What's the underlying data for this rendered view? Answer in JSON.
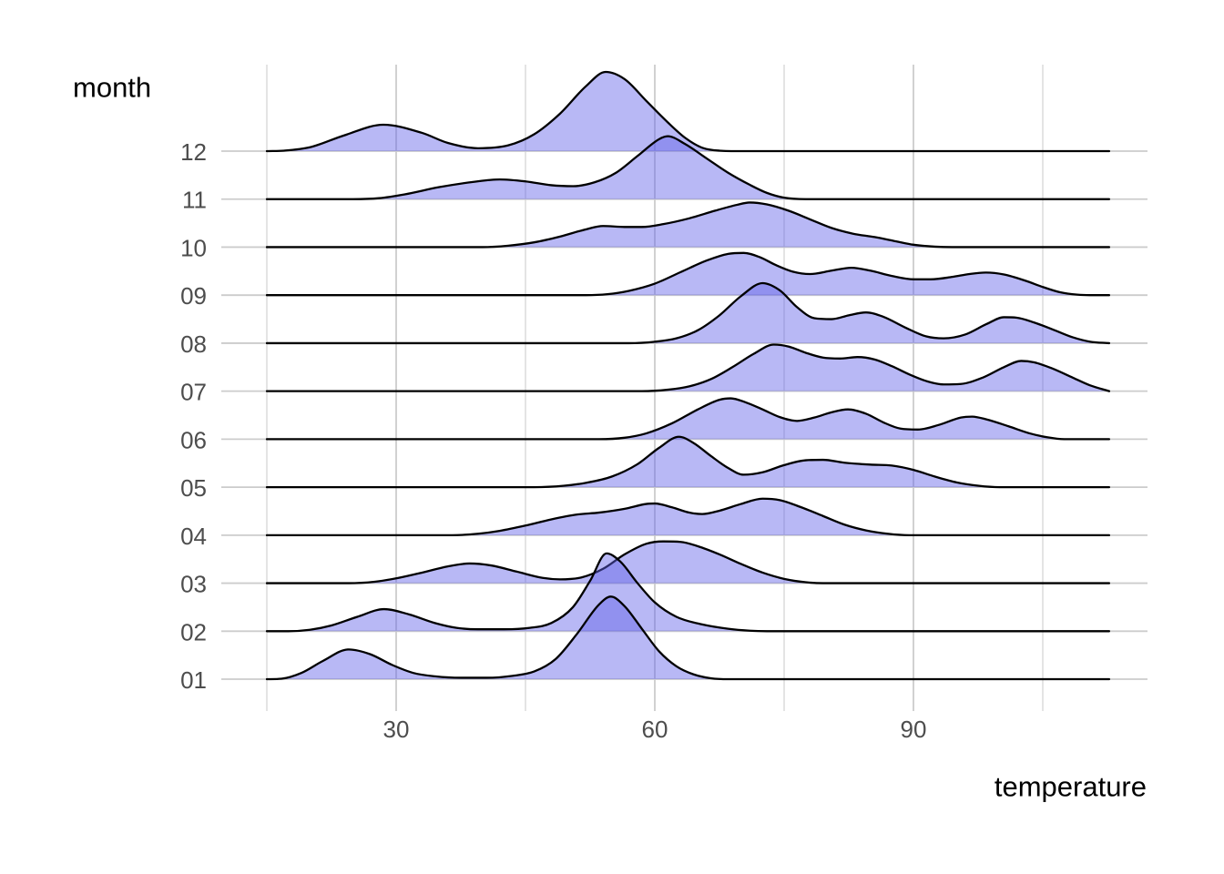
{
  "chart_data": {
    "type": "ridgeline",
    "title": "",
    "xlabel": "temperature",
    "ylabel": "month",
    "x_ticks": [
      "30",
      "60",
      "90"
    ],
    "x_tick_values": [
      30,
      60,
      90
    ],
    "x_minor_tick_values": [
      15,
      45,
      75,
      105
    ],
    "x_domain": [
      15,
      112.7
    ],
    "y_categories_top_to_bottom": [
      "12",
      "11",
      "10",
      "09",
      "08",
      "07",
      "06",
      "05",
      "04",
      "03",
      "02",
      "01"
    ],
    "grid": true,
    "legend": "none",
    "points_note": "points are [temperature, density_height] with height in units of one row spacing",
    "colors": {
      "ridge_fill": "rgba(97,97,233,0.45)",
      "ridge_stroke": "#000000",
      "grid_major": "#cccccc",
      "grid_minor": "#d8d8d8",
      "tick_label": "#4d4d4d",
      "axis_title": "#000000",
      "background": "#ffffff"
    },
    "series": [
      {
        "month": "12",
        "points": [
          [
            15,
            0
          ],
          [
            17,
            0.01
          ],
          [
            20,
            0.08
          ],
          [
            24,
            0.33
          ],
          [
            28.5,
            0.55
          ],
          [
            33,
            0.38
          ],
          [
            36,
            0.17
          ],
          [
            39.5,
            0.06
          ],
          [
            43,
            0.12
          ],
          [
            46,
            0.35
          ],
          [
            49,
            0.78
          ],
          [
            52,
            1.35
          ],
          [
            54.3,
            1.65
          ],
          [
            56.5,
            1.5
          ],
          [
            59,
            1.05
          ],
          [
            61.5,
            0.6
          ],
          [
            63.5,
            0.28
          ],
          [
            65.5,
            0.07
          ],
          [
            67.5,
            0.01
          ],
          [
            70,
            0
          ],
          [
            112.7,
            0
          ]
        ]
      },
      {
        "month": "11",
        "points": [
          [
            15,
            0
          ],
          [
            25,
            0
          ],
          [
            28,
            0.02
          ],
          [
            31,
            0.1
          ],
          [
            35,
            0.25
          ],
          [
            39,
            0.36
          ],
          [
            42,
            0.41
          ],
          [
            45,
            0.37
          ],
          [
            48,
            0.29
          ],
          [
            50.5,
            0.27
          ],
          [
            53,
            0.35
          ],
          [
            55.5,
            0.55
          ],
          [
            58,
            0.9
          ],
          [
            60.5,
            1.25
          ],
          [
            61.5,
            1.31
          ],
          [
            63.5,
            1.15
          ],
          [
            66,
            0.85
          ],
          [
            68.5,
            0.55
          ],
          [
            71,
            0.3
          ],
          [
            73,
            0.13
          ],
          [
            75,
            0.03
          ],
          [
            77.5,
            0
          ],
          [
            112.7,
            0
          ]
        ]
      },
      {
        "month": "10",
        "points": [
          [
            15,
            0
          ],
          [
            40,
            0
          ],
          [
            43,
            0.03
          ],
          [
            46,
            0.1
          ],
          [
            49,
            0.22
          ],
          [
            52,
            0.37
          ],
          [
            54,
            0.44
          ],
          [
            56.5,
            0.42
          ],
          [
            58.5,
            0.42
          ],
          [
            61,
            0.48
          ],
          [
            64,
            0.6
          ],
          [
            67,
            0.76
          ],
          [
            69.5,
            0.88
          ],
          [
            71,
            0.93
          ],
          [
            73,
            0.89
          ],
          [
            75.5,
            0.76
          ],
          [
            78,
            0.58
          ],
          [
            80.5,
            0.4
          ],
          [
            83,
            0.28
          ],
          [
            85.5,
            0.21
          ],
          [
            88,
            0.12
          ],
          [
            90,
            0.05
          ],
          [
            92.5,
            0.01
          ],
          [
            94.5,
            0
          ],
          [
            112.7,
            0
          ]
        ]
      },
      {
        "month": "09",
        "points": [
          [
            15,
            0
          ],
          [
            52,
            0
          ],
          [
            54.5,
            0.02
          ],
          [
            57,
            0.09
          ],
          [
            60,
            0.24
          ],
          [
            63,
            0.48
          ],
          [
            66,
            0.72
          ],
          [
            68.5,
            0.86
          ],
          [
            70.3,
            0.88
          ],
          [
            72.2,
            0.79
          ],
          [
            74,
            0.63
          ],
          [
            76,
            0.49
          ],
          [
            78,
            0.44
          ],
          [
            80.5,
            0.51
          ],
          [
            82.8,
            0.57
          ],
          [
            85,
            0.51
          ],
          [
            87.5,
            0.4
          ],
          [
            90,
            0.33
          ],
          [
            92,
            0.33
          ],
          [
            94.5,
            0.38
          ],
          [
            96.5,
            0.44
          ],
          [
            98.4,
            0.47
          ],
          [
            100.5,
            0.43
          ],
          [
            103,
            0.3
          ],
          [
            105,
            0.17
          ],
          [
            107,
            0.06
          ],
          [
            109,
            0.01
          ],
          [
            110.5,
            0
          ],
          [
            112.7,
            0
          ]
        ]
      },
      {
        "month": "08",
        "points": [
          [
            15,
            0
          ],
          [
            57,
            0
          ],
          [
            60,
            0.03
          ],
          [
            62.5,
            0.1
          ],
          [
            65,
            0.27
          ],
          [
            67.5,
            0.58
          ],
          [
            70,
            0.98
          ],
          [
            72.5,
            1.25
          ],
          [
            74.5,
            1.1
          ],
          [
            76.5,
            0.75
          ],
          [
            78.5,
            0.52
          ],
          [
            80.5,
            0.5
          ],
          [
            82.5,
            0.58
          ],
          [
            84.5,
            0.64
          ],
          [
            86.5,
            0.55
          ],
          [
            89,
            0.33
          ],
          [
            91.5,
            0.14
          ],
          [
            93.5,
            0.1
          ],
          [
            96,
            0.18
          ],
          [
            98.5,
            0.4
          ],
          [
            100.5,
            0.54
          ],
          [
            102,
            0.53
          ],
          [
            104,
            0.43
          ],
          [
            106.5,
            0.26
          ],
          [
            108.5,
            0.12
          ],
          [
            110.5,
            0.03
          ],
          [
            112.7,
            0
          ]
        ]
      },
      {
        "month": "07",
        "points": [
          [
            15,
            0
          ],
          [
            58.5,
            0
          ],
          [
            61.5,
            0.03
          ],
          [
            64,
            0.1
          ],
          [
            66.5,
            0.25
          ],
          [
            69,
            0.5
          ],
          [
            71.5,
            0.78
          ],
          [
            73.8,
            0.97
          ],
          [
            75.5,
            0.93
          ],
          [
            77.5,
            0.8
          ],
          [
            79.5,
            0.7
          ],
          [
            81.5,
            0.68
          ],
          [
            83.5,
            0.71
          ],
          [
            85.5,
            0.66
          ],
          [
            87.5,
            0.52
          ],
          [
            89.5,
            0.35
          ],
          [
            91.5,
            0.21
          ],
          [
            93.5,
            0.14
          ],
          [
            95.5,
            0.15
          ],
          [
            98,
            0.28
          ],
          [
            100.5,
            0.5
          ],
          [
            102.5,
            0.63
          ],
          [
            104,
            0.6
          ],
          [
            106,
            0.48
          ],
          [
            108.5,
            0.28
          ],
          [
            110.5,
            0.12
          ],
          [
            112.7,
            0
          ]
        ]
      },
      {
        "month": "06",
        "points": [
          [
            15,
            0
          ],
          [
            53.5,
            0
          ],
          [
            56.5,
            0.03
          ],
          [
            59,
            0.12
          ],
          [
            62,
            0.33
          ],
          [
            65,
            0.62
          ],
          [
            67.5,
            0.82
          ],
          [
            68.8,
            0.85
          ],
          [
            70.5,
            0.77
          ],
          [
            72.5,
            0.62
          ],
          [
            74.5,
            0.46
          ],
          [
            76.5,
            0.38
          ],
          [
            78.5,
            0.45
          ],
          [
            80.5,
            0.56
          ],
          [
            82.4,
            0.62
          ],
          [
            84.5,
            0.53
          ],
          [
            86.5,
            0.35
          ],
          [
            88.5,
            0.22
          ],
          [
            90.5,
            0.2
          ],
          [
            93,
            0.3
          ],
          [
            95.5,
            0.45
          ],
          [
            96.8,
            0.47
          ],
          [
            98.5,
            0.41
          ],
          [
            101,
            0.27
          ],
          [
            103.5,
            0.12
          ],
          [
            105.5,
            0.04
          ],
          [
            107.5,
            0
          ],
          [
            112.7,
            0
          ]
        ]
      },
      {
        "month": "05",
        "points": [
          [
            15,
            0
          ],
          [
            46,
            0
          ],
          [
            49.5,
            0.03
          ],
          [
            52,
            0.09
          ],
          [
            55,
            0.22
          ],
          [
            58,
            0.48
          ],
          [
            60.5,
            0.82
          ],
          [
            62.8,
            1.05
          ],
          [
            64.5,
            0.92
          ],
          [
            66.5,
            0.65
          ],
          [
            68.5,
            0.4
          ],
          [
            70.3,
            0.26
          ],
          [
            72.5,
            0.31
          ],
          [
            75,
            0.46
          ],
          [
            77.5,
            0.56
          ],
          [
            79.5,
            0.57
          ],
          [
            82,
            0.51
          ],
          [
            85,
            0.47
          ],
          [
            87.5,
            0.45
          ],
          [
            90,
            0.36
          ],
          [
            92.5,
            0.22
          ],
          [
            95,
            0.1
          ],
          [
            97.5,
            0.03
          ],
          [
            100,
            0
          ],
          [
            112.7,
            0
          ]
        ]
      },
      {
        "month": "04",
        "points": [
          [
            15,
            0
          ],
          [
            36.5,
            0
          ],
          [
            39.5,
            0.03
          ],
          [
            42,
            0.09
          ],
          [
            45,
            0.2
          ],
          [
            48,
            0.33
          ],
          [
            51,
            0.43
          ],
          [
            53.5,
            0.47
          ],
          [
            56.5,
            0.55
          ],
          [
            59,
            0.65
          ],
          [
            60,
            0.66
          ],
          [
            62,
            0.58
          ],
          [
            64,
            0.47
          ],
          [
            65.5,
            0.44
          ],
          [
            67.5,
            0.51
          ],
          [
            70,
            0.65
          ],
          [
            72.5,
            0.76
          ],
          [
            74.5,
            0.73
          ],
          [
            77,
            0.58
          ],
          [
            79.5,
            0.4
          ],
          [
            82,
            0.22
          ],
          [
            84.5,
            0.1
          ],
          [
            87,
            0.03
          ],
          [
            89.5,
            0
          ],
          [
            112.7,
            0
          ]
        ]
      },
      {
        "month": "03",
        "points": [
          [
            15,
            0
          ],
          [
            24.5,
            0
          ],
          [
            27.5,
            0.03
          ],
          [
            30,
            0.1
          ],
          [
            33,
            0.22
          ],
          [
            36,
            0.35
          ],
          [
            38.5,
            0.41
          ],
          [
            41,
            0.37
          ],
          [
            44,
            0.24
          ],
          [
            47,
            0.11
          ],
          [
            49,
            0.08
          ],
          [
            51.5,
            0.12
          ],
          [
            54,
            0.3
          ],
          [
            56.5,
            0.6
          ],
          [
            59,
            0.82
          ],
          [
            61,
            0.87
          ],
          [
            63,
            0.86
          ],
          [
            65,
            0.77
          ],
          [
            67.5,
            0.6
          ],
          [
            70,
            0.4
          ],
          [
            72.5,
            0.22
          ],
          [
            75,
            0.09
          ],
          [
            77.5,
            0.02
          ],
          [
            79.5,
            0
          ],
          [
            112.7,
            0
          ]
        ]
      },
      {
        "month": "02",
        "points": [
          [
            15,
            0
          ],
          [
            17.5,
            0
          ],
          [
            20,
            0.03
          ],
          [
            22.5,
            0.12
          ],
          [
            25.5,
            0.3
          ],
          [
            28.6,
            0.46
          ],
          [
            31.5,
            0.35
          ],
          [
            34.5,
            0.17
          ],
          [
            37,
            0.07
          ],
          [
            39.5,
            0.04
          ],
          [
            42.5,
            0.04
          ],
          [
            45.5,
            0.07
          ],
          [
            48,
            0.17
          ],
          [
            50.5,
            0.5
          ],
          [
            52.5,
            1.05
          ],
          [
            54.4,
            1.62
          ],
          [
            56,
            1.45
          ],
          [
            58,
            1.0
          ],
          [
            60,
            0.6
          ],
          [
            62.5,
            0.3
          ],
          [
            65.5,
            0.14
          ],
          [
            68.5,
            0.05
          ],
          [
            71,
            0.01
          ],
          [
            73,
            0
          ],
          [
            112.7,
            0
          ]
        ]
      },
      {
        "month": "01",
        "points": [
          [
            15,
            0
          ],
          [
            16.7,
            0.01
          ],
          [
            19,
            0.13
          ],
          [
            21.5,
            0.38
          ],
          [
            24.5,
            0.62
          ],
          [
            27,
            0.52
          ],
          [
            29.5,
            0.3
          ],
          [
            32,
            0.13
          ],
          [
            34.5,
            0.06
          ],
          [
            37.5,
            0.03
          ],
          [
            40.5,
            0.03
          ],
          [
            43.5,
            0.07
          ],
          [
            46,
            0.16
          ],
          [
            48.5,
            0.42
          ],
          [
            51,
            0.95
          ],
          [
            53.5,
            1.55
          ],
          [
            54.9,
            1.72
          ],
          [
            56.5,
            1.52
          ],
          [
            58.5,
            1.05
          ],
          [
            60.5,
            0.58
          ],
          [
            62.5,
            0.27
          ],
          [
            64.5,
            0.1
          ],
          [
            66.5,
            0.02
          ],
          [
            68.5,
            0
          ],
          [
            112.7,
            0
          ]
        ]
      }
    ]
  }
}
